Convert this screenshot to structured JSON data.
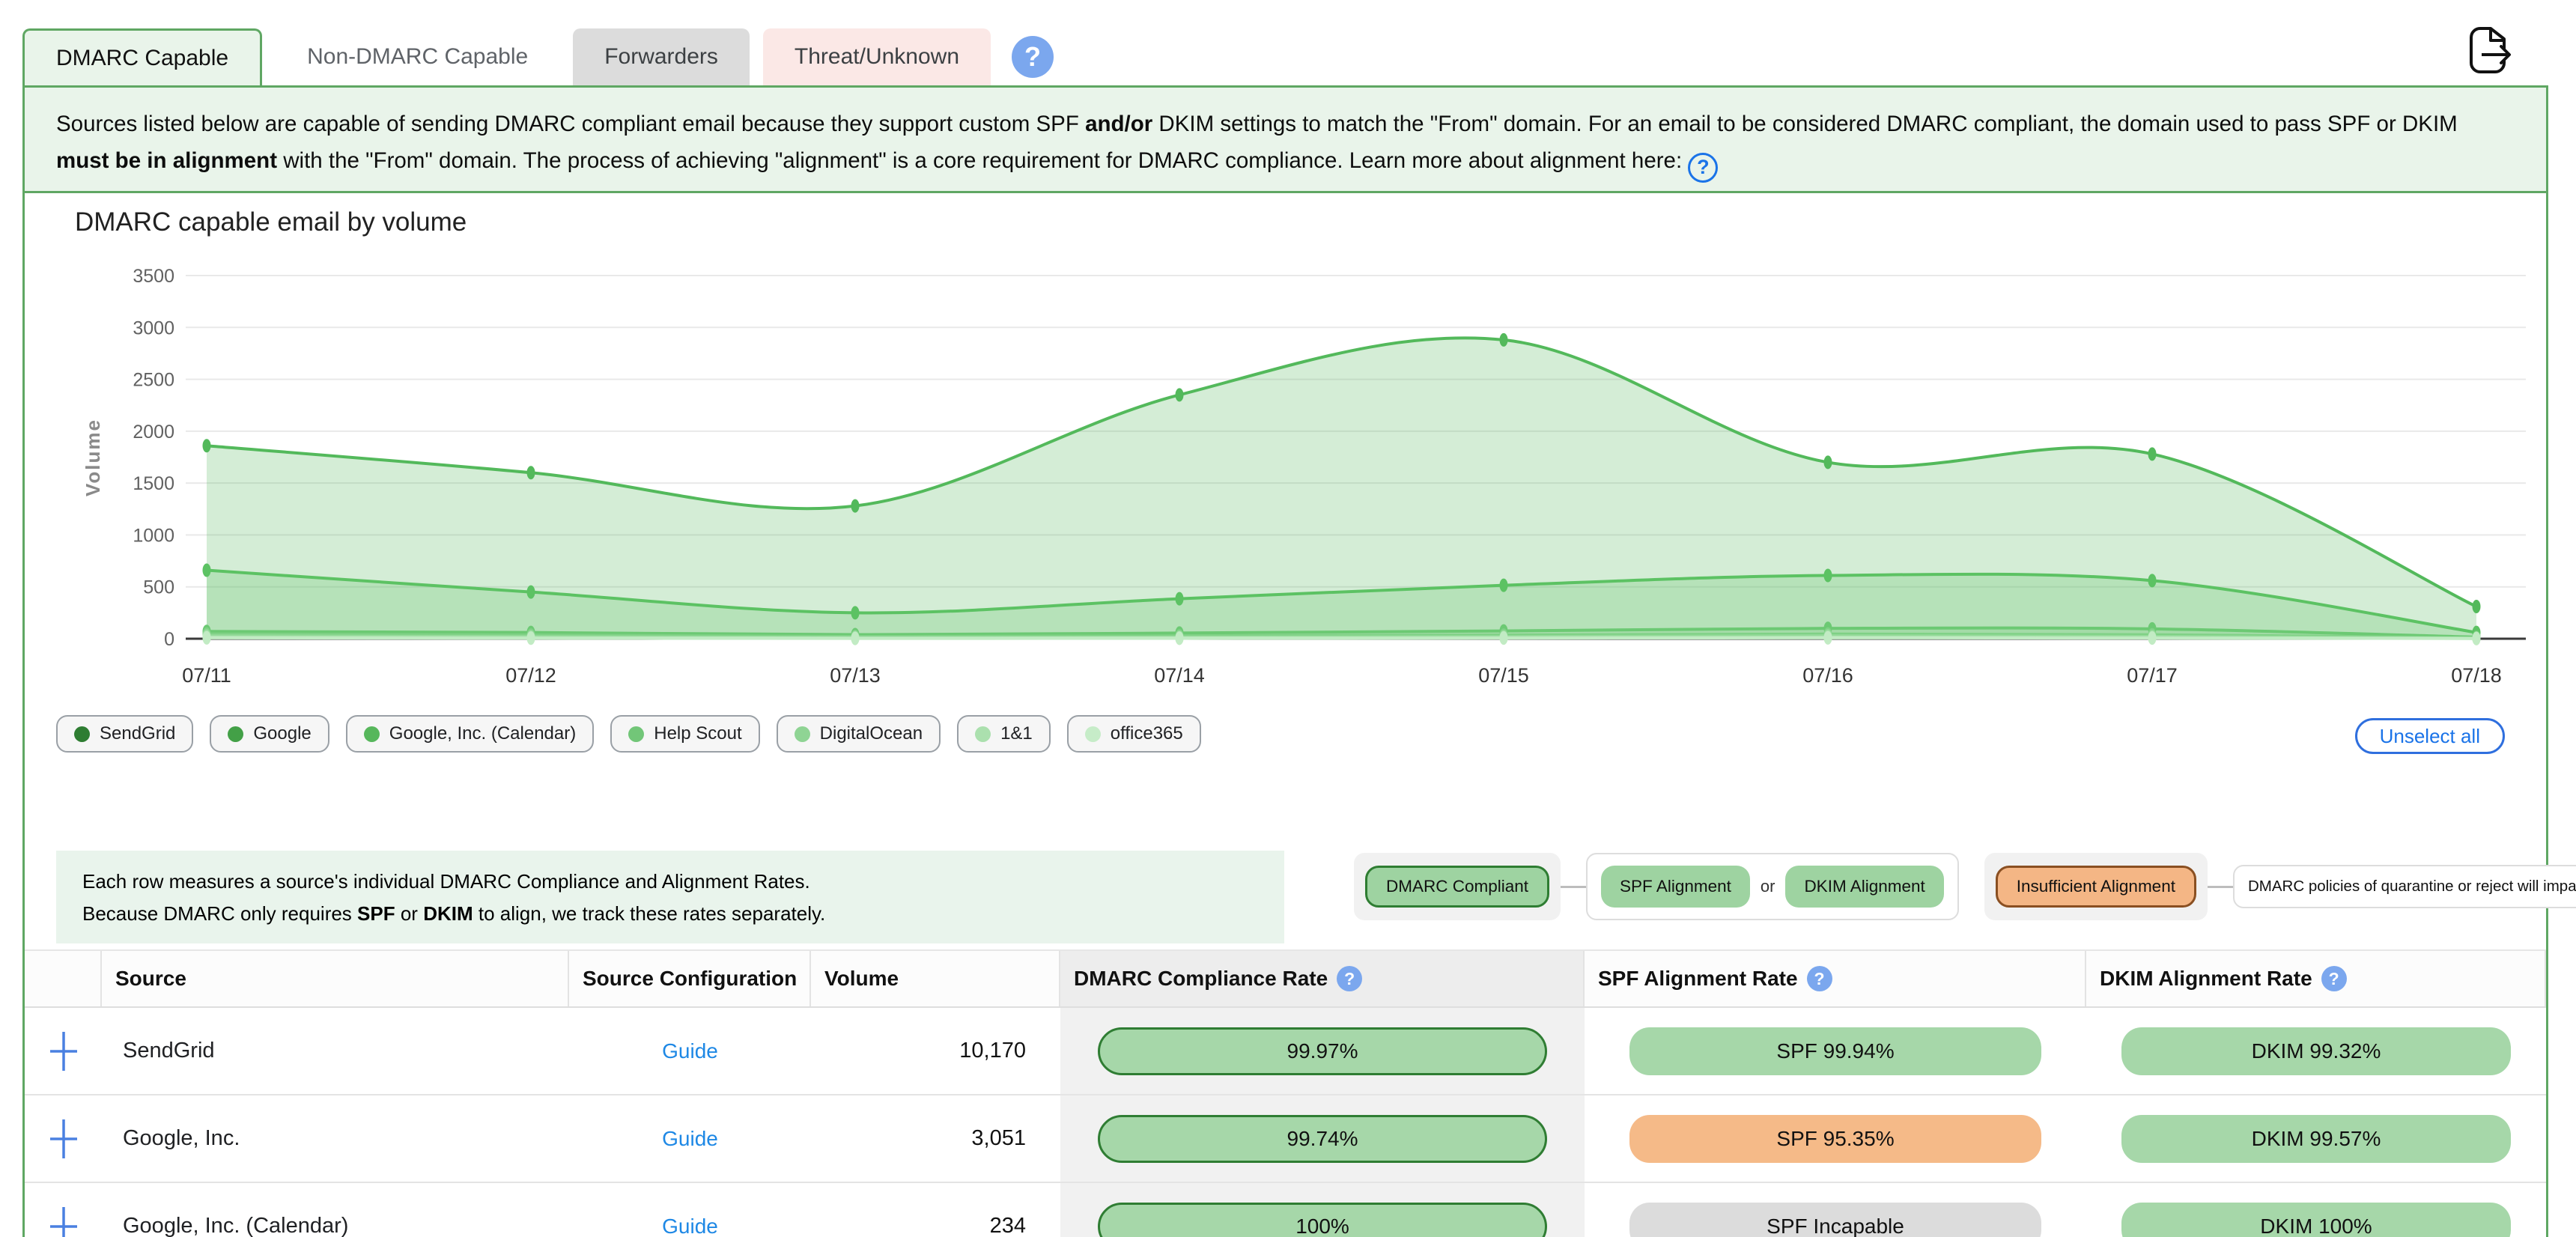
{
  "colors": {
    "panel_border": "#5fa763",
    "active_tab_bg": "#e9f4ea",
    "desc_bg": "#e9f4ea",
    "compliant_pill": "#a6d7a9",
    "compliant_border": "#2f7d33",
    "warning_pill": "#f5ba88",
    "warning_border": "#8a4f21",
    "incapable_pill": "#dcdcdc",
    "link_blue": "#1e88e5",
    "help_blue": "#7ba7ee"
  },
  "tabs": [
    {
      "label": "DMARC Capable",
      "state": "active"
    },
    {
      "label": "Non-DMARC Capable",
      "state": "plain"
    },
    {
      "label": "Forwarders",
      "state": "gray"
    },
    {
      "label": "Threat/Unknown",
      "state": "red"
    }
  ],
  "tab_help_glyph": "?",
  "description": {
    "segments": [
      {
        "t": "Sources listed below are capable of sending DMARC compliant email because they support custom SPF ",
        "b": false
      },
      {
        "t": "and/or",
        "b": true
      },
      {
        "t": " DKIM settings to match the \"From\" domain. For an email to be considered DMARC compliant, the domain used to pass SPF or DKIM ",
        "b": false
      },
      {
        "t": "must be in alignment",
        "b": true
      },
      {
        "t": " with the \"From\" domain. The process of achieving \"alignment\" is a core requirement for DMARC compliance. Learn more about alignment here: ",
        "b": false
      }
    ],
    "trailing_help_glyph": "?"
  },
  "chart_data": {
    "type": "area",
    "title": "DMARC capable email by volume",
    "ylabel": "Volume",
    "ylim": [
      0,
      3500
    ],
    "y_tick_step": 500,
    "grid": true,
    "legend_position": "bottom",
    "categories": [
      "07/11",
      "07/12",
      "07/13",
      "07/14",
      "07/15",
      "07/16",
      "07/17",
      "07/18"
    ],
    "series": [
      {
        "name": "SendGrid",
        "legend_color": "#2e7d32",
        "line_color": "#53b95b",
        "values": [
          1860,
          1600,
          1280,
          2350,
          2880,
          1700,
          1780,
          310
        ]
      },
      {
        "name": "Google",
        "legend_color": "#43a047",
        "line_color": "#5cc263",
        "values": [
          660,
          450,
          250,
          385,
          515,
          610,
          560,
          60
        ]
      },
      {
        "name": "Google, Inc. (Calendar)",
        "legend_color": "#57b75c",
        "line_color": "#6cc973",
        "values": [
          70,
          60,
          40,
          55,
          75,
          100,
          95,
          15
        ]
      },
      {
        "name": "Help Scout",
        "legend_color": "#72c678",
        "line_color": "#7fd185",
        "values": [
          45,
          35,
          22,
          28,
          35,
          45,
          38,
          8
        ]
      },
      {
        "name": "DigitalOcean",
        "legend_color": "#8fd494",
        "line_color": "#95da9a",
        "values": [
          28,
          20,
          12,
          15,
          20,
          28,
          22,
          5
        ]
      },
      {
        "name": "1&1",
        "legend_color": "#abe0ae",
        "line_color": "#abe2ae",
        "values": [
          15,
          10,
          6,
          8,
          10,
          14,
          10,
          3
        ]
      },
      {
        "name": "office365",
        "legend_color": "#c6ecc8",
        "line_color": "#c2ebc4",
        "values": [
          8,
          5,
          3,
          4,
          6,
          8,
          6,
          2
        ]
      }
    ]
  },
  "unselect_label": "Unselect all",
  "info_box": {
    "line1": [
      {
        "t": "Each row measures a source's individual DMARC Compliance and Alignment Rates.",
        "b": false
      }
    ],
    "line2": [
      {
        "t": "Because DMARC only requires ",
        "b": false
      },
      {
        "t": "SPF",
        "b": true
      },
      {
        "t": " or ",
        "b": false
      },
      {
        "t": "DKIM",
        "b": true
      },
      {
        "t": " to align, we track these rates separately.",
        "b": false
      }
    ]
  },
  "badge_legend": {
    "dmarc_compliant": "DMARC Compliant",
    "spf_alignment": "SPF Alignment",
    "or_label": "or",
    "dkim_alignment": "DKIM Alignment",
    "insufficient_alignment": "Insufficient Alignment",
    "policy_note": "DMARC policies of quarantine or reject will impact this source"
  },
  "table": {
    "headers": {
      "expand": "",
      "source": "Source",
      "config": "Source Configuration",
      "volume": "Volume",
      "dmarc": "DMARC Compliance Rate",
      "spf": "SPF Alignment Rate",
      "dkim": "DKIM Alignment Rate"
    },
    "help_glyph": "?",
    "guide_label": "Guide",
    "rows": [
      {
        "source": "SendGrid",
        "volume": "10,170",
        "compliance": "99.97%",
        "spf": {
          "label": "SPF 99.94%",
          "status": "aligned"
        },
        "dkim": {
          "label": "DKIM 99.32%",
          "status": "aligned"
        }
      },
      {
        "source": "Google, Inc.",
        "volume": "3,051",
        "compliance": "99.74%",
        "spf": {
          "label": "SPF 95.35%",
          "status": "insufficient"
        },
        "dkim": {
          "label": "DKIM 99.57%",
          "status": "aligned"
        }
      },
      {
        "source": "Google, Inc. (Calendar)",
        "volume": "234",
        "compliance": "100%",
        "spf": {
          "label": "SPF Incapable",
          "status": "incapable"
        },
        "dkim": {
          "label": "DKIM 100%",
          "status": "aligned"
        }
      }
    ]
  }
}
